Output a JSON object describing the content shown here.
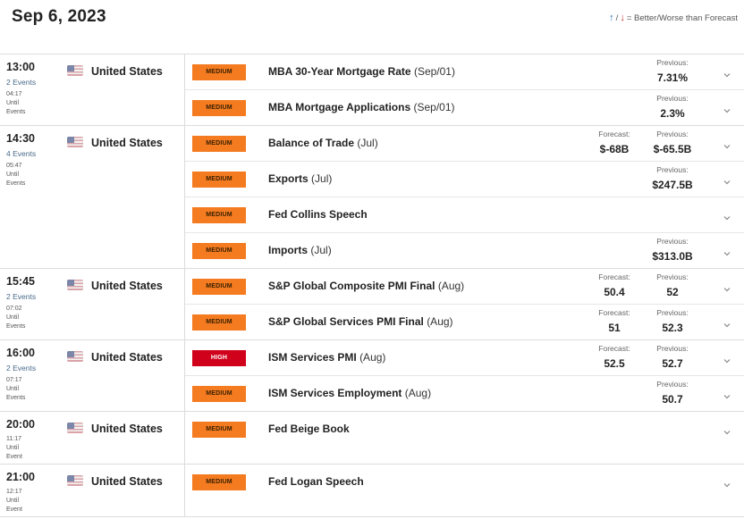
{
  "date": "Sep 6, 2023",
  "legend": {
    "up_icon": "arrow-up-icon",
    "down_icon": "arrow-down-icon",
    "text": "= Better/Worse than Forecast",
    "up_color": "#1d6fb3",
    "down_color": "#c62828"
  },
  "labels": {
    "forecast": "Forecast:",
    "previous": "Previous:"
  },
  "colors": {
    "medium": "#f47b20",
    "high": "#d0021b"
  },
  "groups": [
    {
      "time": "13:00",
      "count": "2 Events",
      "countdown": "04:17",
      "until_1": "Until",
      "until_2": "Events",
      "country": "United States",
      "flag": "us-flag-icon",
      "events": [
        {
          "impact": "MEDIUM",
          "level": "medium",
          "name": "MBA 30-Year Mortgage Rate",
          "period": "(Sep/01)",
          "forecast": "",
          "previous": "7.31%"
        },
        {
          "impact": "MEDIUM",
          "level": "medium",
          "name": "MBA Mortgage Applications",
          "period": "(Sep/01)",
          "forecast": "",
          "previous": "2.3%"
        }
      ]
    },
    {
      "time": "14:30",
      "count": "4 Events",
      "countdown": "05:47",
      "until_1": "Until",
      "until_2": "Events",
      "country": "United States",
      "flag": "us-flag-icon",
      "events": [
        {
          "impact": "MEDIUM",
          "level": "medium",
          "name": "Balance of Trade",
          "period": "(Jul)",
          "forecast": "$-68B",
          "previous": "$-65.5B"
        },
        {
          "impact": "MEDIUM",
          "level": "medium",
          "name": "Exports",
          "period": "(Jul)",
          "forecast": "",
          "previous": "$247.5B"
        },
        {
          "impact": "MEDIUM",
          "level": "medium",
          "name": "Fed Collins Speech",
          "period": "",
          "forecast": "",
          "previous": ""
        },
        {
          "impact": "MEDIUM",
          "level": "medium",
          "name": "Imports",
          "period": "(Jul)",
          "forecast": "",
          "previous": "$313.0B"
        }
      ]
    },
    {
      "time": "15:45",
      "count": "2 Events",
      "countdown": "07:02",
      "until_1": "Until",
      "until_2": "Events",
      "country": "United States",
      "flag": "us-flag-icon",
      "events": [
        {
          "impact": "MEDIUM",
          "level": "medium",
          "name": "S&P Global Composite PMI Final",
          "period": "(Aug)",
          "forecast": "50.4",
          "previous": "52"
        },
        {
          "impact": "MEDIUM",
          "level": "medium",
          "name": "S&P Global Services PMI Final",
          "period": "(Aug)",
          "forecast": "51",
          "previous": "52.3"
        }
      ]
    },
    {
      "time": "16:00",
      "count": "2 Events",
      "countdown": "07:17",
      "until_1": "Until",
      "until_2": "Events",
      "country": "United States",
      "flag": "us-flag-icon",
      "events": [
        {
          "impact": "HIGH",
          "level": "high",
          "name": "ISM Services PMI",
          "period": "(Aug)",
          "forecast": "52.5",
          "previous": "52.7"
        },
        {
          "impact": "MEDIUM",
          "level": "medium",
          "name": "ISM Services Employment",
          "period": "(Aug)",
          "forecast": "",
          "previous": "50.7"
        }
      ]
    },
    {
      "time": "20:00",
      "count": "",
      "countdown": "11:17",
      "until_1": "Until",
      "until_2": "Event",
      "country": "United States",
      "flag": "us-flag-icon",
      "events": [
        {
          "impact": "MEDIUM",
          "level": "medium",
          "name": "Fed Beige Book",
          "period": "",
          "forecast": "",
          "previous": "",
          "tall": true
        }
      ]
    },
    {
      "time": "21:00",
      "count": "",
      "countdown": "12:17",
      "until_1": "Until",
      "until_2": "Event",
      "country": "United States",
      "flag": "us-flag-icon",
      "events": [
        {
          "impact": "MEDIUM",
          "level": "medium",
          "name": "Fed Logan Speech",
          "period": "",
          "forecast": "",
          "previous": "",
          "tall": true
        }
      ]
    }
  ]
}
